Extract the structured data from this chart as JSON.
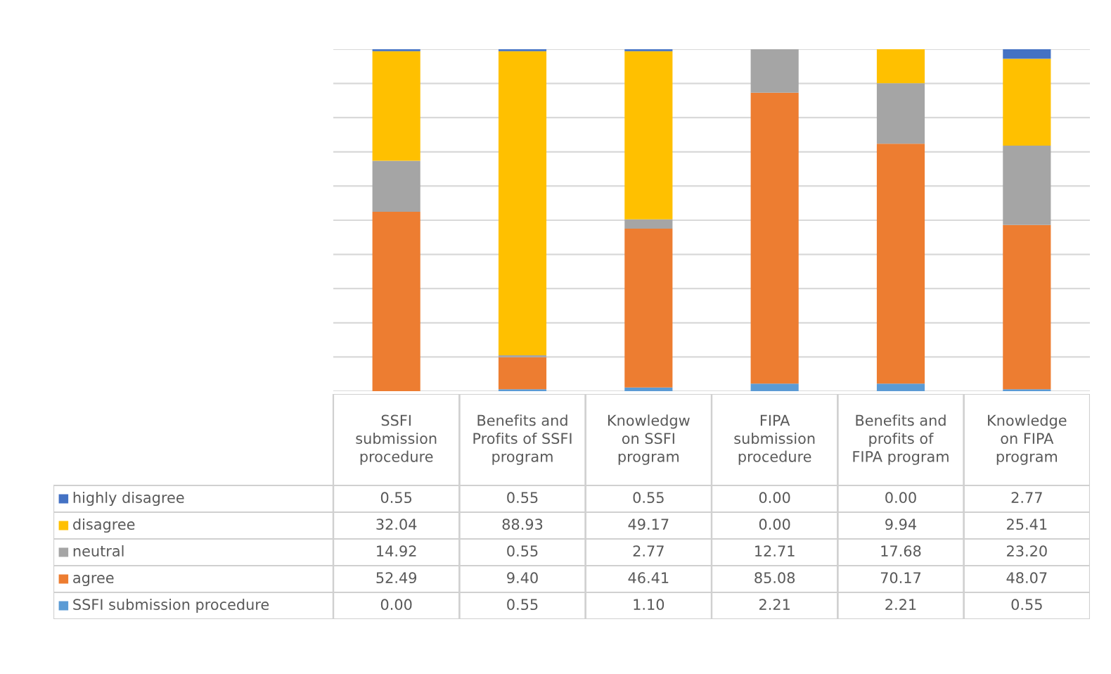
{
  "chart_data": {
    "type": "bar",
    "stacked": true,
    "categories": [
      "SSFI\nsubmission\nprocedure",
      "Benefits and\nProfits of SSFI\nprogram",
      "Knowledgw\non SSFI\nprogram",
      "FIPA\nsubmission\nprocedure",
      "Benefits and\nprofits of\nFIPA program",
      "Knowledge\non FIPA\nprogram"
    ],
    "series": [
      {
        "name": "SSFI submission procedure",
        "color": "#5b9bd5",
        "values": [
          0.0,
          0.55,
          1.1,
          2.21,
          2.21,
          0.55
        ],
        "value_labels": [
          "0.00",
          "0.55",
          "1.10",
          "2.21",
          "2.21",
          "0.55"
        ]
      },
      {
        "name": "agree",
        "color": "#ed7d31",
        "values": [
          52.49,
          9.4,
          46.41,
          85.08,
          70.17,
          48.07
        ],
        "value_labels": [
          "52.49",
          "9.40",
          "46.41",
          "85.08",
          "70.17",
          "48.07"
        ]
      },
      {
        "name": "neutral",
        "color": "#a5a5a5",
        "values": [
          14.92,
          0.55,
          2.77,
          12.71,
          17.68,
          23.2
        ],
        "value_labels": [
          "14.92",
          "0.55",
          "2.77",
          "12.71",
          "17.68",
          "23.20"
        ]
      },
      {
        "name": "disagree",
        "color": "#ffc000",
        "values": [
          32.04,
          88.93,
          49.17,
          0.0,
          9.94,
          25.41
        ],
        "value_labels": [
          "32.04",
          "88.93",
          "49.17",
          "0.00",
          "9.94",
          "25.41"
        ]
      },
      {
        "name": "highly disagree",
        "color": "#4472c4",
        "values": [
          0.55,
          0.55,
          0.55,
          0.0,
          0.0,
          2.77
        ],
        "value_labels": [
          "0.55",
          "0.55",
          "0.55",
          "0.00",
          "0.00",
          "2.77"
        ]
      }
    ],
    "ylim": [
      0,
      100
    ],
    "yticks": [
      {
        "value": 0,
        "label": null
      },
      {
        "value": 10,
        "label": null
      },
      {
        "value": 20,
        "label": null
      },
      {
        "value": 30,
        "label": null
      },
      {
        "value": 40,
        "label": null
      },
      {
        "value": 50,
        "label": null
      },
      {
        "value": 60,
        "label": null
      },
      {
        "value": 70,
        "label": null
      },
      {
        "value": 80,
        "label": null
      },
      {
        "value": 90,
        "label": null
      },
      {
        "value": 100,
        "label": null
      }
    ],
    "grid": "y",
    "legend": "bottom left"
  }
}
